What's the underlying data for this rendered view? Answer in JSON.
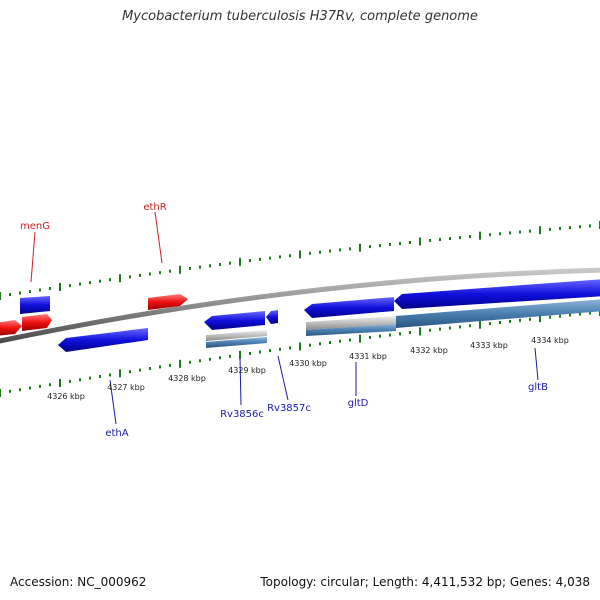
{
  "title": "Mycobacterium tuberculosis H37Rv, complete genome",
  "footer": {
    "accession": "Accession: NC_000962",
    "summary": "Topology: circular; Length: 4,411,532 bp; Genes: 4,038"
  },
  "colors": {
    "backbone": "#8a8a8a",
    "tick": "#1f7a1f",
    "forward_gene": "#1010dd",
    "reverse_gene": "#ee1111",
    "pseudo_gene": "#bdbdbd",
    "rna_feature": "#4a7fb0",
    "label_blue": "#1a1aaa",
    "label_red": "#cc2222"
  },
  "axis_labels": [
    "4326 kbp",
    "4327 kbp",
    "4328 kbp",
    "4329 kbp",
    "4330 kbp",
    "4331 kbp",
    "4332 kbp",
    "4333 kbp",
    "4334 kbp"
  ],
  "gene_labels": [
    {
      "name": "menG",
      "color": "red"
    },
    {
      "name": "ethR",
      "color": "red"
    },
    {
      "name": "ethA",
      "color": "blue"
    },
    {
      "name": "Rv3856c",
      "color": "blue"
    },
    {
      "name": "Rv3857c",
      "color": "blue"
    },
    {
      "name": "gltD",
      "color": "blue"
    },
    {
      "name": "gltB",
      "color": "blue"
    }
  ]
}
